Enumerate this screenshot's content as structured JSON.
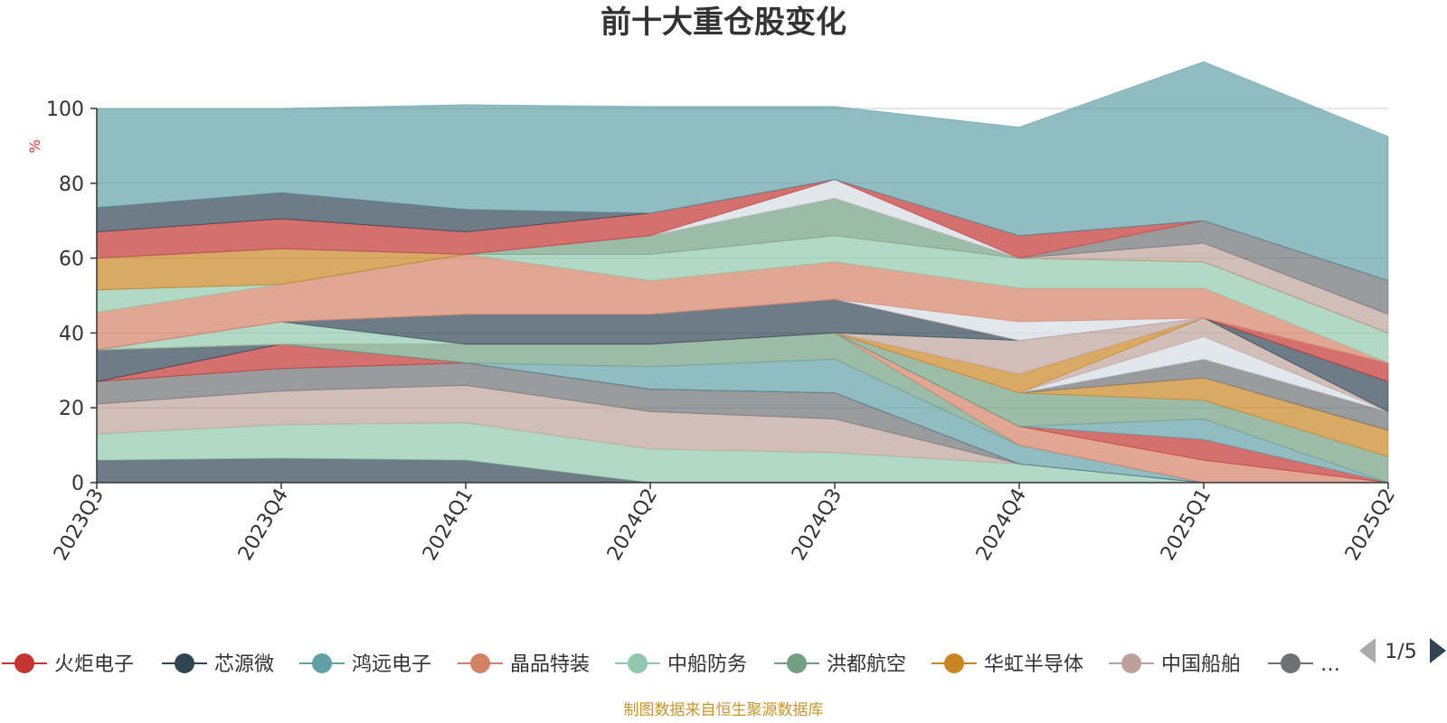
{
  "chart_data": {
    "type": "area",
    "title": "前十大重仓股变化",
    "ylabel": "%",
    "ylim": [
      0,
      100
    ],
    "yticks": [
      "0",
      "20",
      "40",
      "60",
      "80",
      "100"
    ],
    "categories": [
      "2023Q3",
      "2023Q4",
      "2024Q1",
      "2024Q2",
      "2024Q3",
      "2024Q4",
      "2025Q1",
      "2025Q2"
    ],
    "stacked": true,
    "layers": [
      {
        "color": "#2f4554",
        "values": [
          6,
          6.5,
          6,
          0,
          0,
          0,
          0,
          0
        ]
      },
      {
        "color": "#91c7ae",
        "values": [
          7,
          9,
          10,
          9,
          8,
          5,
          0,
          0
        ]
      },
      {
        "color": "#bda29a",
        "values": [
          8,
          9,
          10,
          10,
          9,
          0,
          0,
          0
        ]
      },
      {
        "color": "#6e7074",
        "values": [
          6,
          6,
          6,
          6,
          7,
          0,
          0,
          0
        ]
      },
      {
        "color": "#c23531",
        "values": [
          0,
          6.5,
          0,
          0,
          0,
          0,
          0,
          0
        ]
      },
      {
        "color": "#2f4554",
        "values": [
          8.5,
          0,
          0,
          0,
          0,
          0,
          0,
          0
        ]
      },
      {
        "color": "#61a0a8",
        "values": [
          0,
          0,
          0,
          6,
          9,
          5,
          0,
          0
        ]
      },
      {
        "color": "#749f83",
        "values": [
          0,
          0,
          5,
          6,
          7,
          0,
          0,
          0
        ]
      },
      {
        "color": "#d48265",
        "values": [
          0,
          0,
          0,
          0,
          0,
          5,
          6,
          0
        ]
      },
      {
        "color": "#c23531",
        "values": [
          0,
          0,
          0,
          0,
          0,
          0,
          5.5,
          0
        ]
      },
      {
        "color": "#61a0a8",
        "values": [
          0,
          0,
          0,
          0,
          0,
          0,
          5.5,
          0
        ]
      },
      {
        "color": "#749f83",
        "values": [
          0,
          0,
          0,
          0,
          0,
          9,
          5,
          7
        ]
      },
      {
        "color": "#ca8622",
        "values": [
          0,
          0,
          0,
          0,
          0,
          0,
          6,
          7
        ]
      },
      {
        "color": "#6e7074",
        "values": [
          0,
          0,
          0,
          0,
          0,
          0,
          5,
          5
        ]
      },
      {
        "color": "#d5dde6",
        "values": [
          0,
          0,
          0,
          0,
          0,
          0,
          6,
          0
        ]
      },
      {
        "color": "#bda29a",
        "values": [
          0,
          0,
          0,
          0,
          0,
          0,
          5,
          0
        ]
      },
      {
        "color": "#ca8622",
        "values": [
          0,
          0,
          0,
          0,
          0,
          5,
          0,
          0
        ]
      },
      {
        "color": "#bda29a",
        "values": [
          0,
          0,
          0,
          0,
          0,
          9,
          0,
          0
        ]
      },
      {
        "color": "#91c7ae",
        "values": [
          0,
          6,
          0,
          0,
          0,
          0,
          0,
          0
        ]
      },
      {
        "color": "#2f4554",
        "values": [
          0,
          0,
          8,
          8,
          9,
          0,
          0,
          8
        ]
      },
      {
        "color": "#c23531",
        "values": [
          0,
          0,
          0,
          0,
          0,
          0,
          0,
          5
        ]
      },
      {
        "color": "#d5dde6",
        "values": [
          0,
          0,
          0,
          0,
          0,
          5,
          0,
          0
        ]
      },
      {
        "color": "#d48265",
        "values": [
          10,
          10,
          16,
          9,
          10,
          9,
          8,
          0
        ]
      },
      {
        "color": "#91c7ae",
        "values": [
          6,
          0,
          0,
          7,
          7,
          8,
          7,
          8
        ]
      },
      {
        "color": "#749f83",
        "values": [
          0,
          0,
          0,
          5,
          10,
          0,
          0,
          0
        ]
      },
      {
        "color": "#ca8622",
        "values": [
          8.5,
          9.5,
          0,
          0,
          0,
          0,
          0,
          0
        ]
      },
      {
        "color": "#bda29a",
        "values": [
          0,
          0,
          0,
          0,
          0,
          0,
          5,
          5
        ]
      },
      {
        "color": "#6e7074",
        "values": [
          0,
          0,
          0,
          0,
          0,
          0,
          6,
          9
        ]
      },
      {
        "color": "#d5dde6",
        "values": [
          0,
          0,
          0,
          0,
          5,
          0,
          0,
          0
        ]
      },
      {
        "color": "#c23531",
        "values": [
          7,
          8,
          6,
          6,
          0,
          6,
          0,
          0
        ]
      },
      {
        "color": "#2f4554",
        "values": [
          6.5,
          7,
          6,
          0,
          0,
          0,
          0,
          0
        ]
      },
      {
        "color": "#61a0a8",
        "values": [
          26.5,
          22.5,
          28,
          28.5,
          19.5,
          29,
          42.5,
          38.5
        ]
      }
    ],
    "legend": {
      "items": [
        {
          "name": "火炬电子",
          "color": "#c23531"
        },
        {
          "name": "芯源微",
          "color": "#2f4554"
        },
        {
          "name": "鸿远电子",
          "color": "#61a0a8"
        },
        {
          "name": "晶品特装",
          "color": "#d48265"
        },
        {
          "name": "中船防务",
          "color": "#91c7ae"
        },
        {
          "name": "洪都航空",
          "color": "#749f83"
        },
        {
          "name": "华虹半导体",
          "color": "#ca8622"
        },
        {
          "name": "中国船舶",
          "color": "#bda29a"
        },
        {
          "name": "…",
          "color": "#6e7074"
        }
      ],
      "page": "1/5",
      "placement": "bottom"
    }
  },
  "source_note": "制图数据来自恒生聚源数据库",
  "colors": {
    "axis": "#333333",
    "grid": "#cccccc",
    "unit": "#e83030",
    "source": "#c8962a",
    "pager_active": "#2f4554",
    "pager_inactive": "#aaaaaa"
  }
}
